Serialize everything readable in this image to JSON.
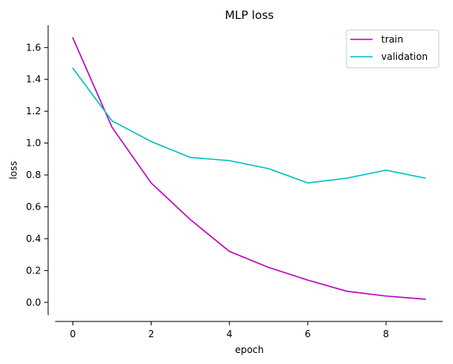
{
  "chart_data": {
    "type": "line",
    "title": "MLP loss",
    "xlabel": "epoch",
    "ylabel": "loss",
    "x": [
      0,
      1,
      2,
      3,
      4,
      5,
      6,
      7,
      8,
      9
    ],
    "xlim": [
      -0.45,
      9.45
    ],
    "ylim": [
      -0.08,
      1.74
    ],
    "xticks": [
      0,
      2,
      4,
      6,
      8
    ],
    "yticks": [
      0.0,
      0.2,
      0.4,
      0.6,
      0.8,
      1.0,
      1.2,
      1.4,
      1.6
    ],
    "xtick_labels": [
      "0",
      "2",
      "4",
      "6",
      "8"
    ],
    "ytick_labels": [
      "0.0",
      "0.2",
      "0.4",
      "0.6",
      "0.8",
      "1.0",
      "1.2",
      "1.4",
      "1.6"
    ],
    "grid": false,
    "legend": "top-right",
    "series": [
      {
        "name": "train",
        "color": "#bf00bf",
        "values": [
          1.66,
          1.1,
          0.75,
          0.52,
          0.32,
          0.22,
          0.14,
          0.07,
          0.04,
          0.02
        ]
      },
      {
        "name": "validation",
        "color": "#00bfbf",
        "values": [
          1.47,
          1.14,
          1.01,
          0.91,
          0.89,
          0.84,
          0.75,
          0.78,
          0.83,
          0.78
        ]
      }
    ]
  }
}
